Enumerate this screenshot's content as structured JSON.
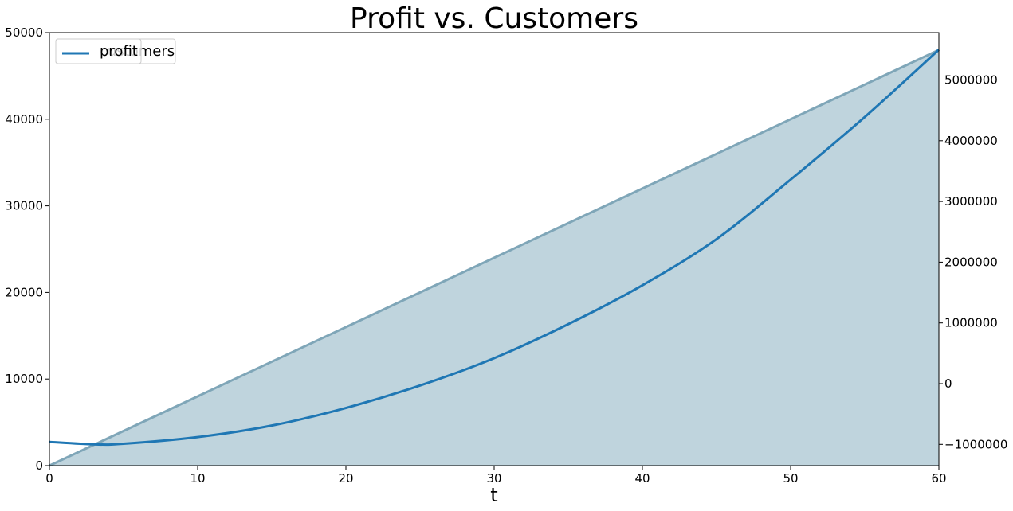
{
  "chart_data": {
    "type": "area",
    "title": "Profit vs. Customers",
    "xlabel": "t",
    "ylabel": "",
    "y2label": "",
    "xlim": [
      0,
      60
    ],
    "ylim": [
      0,
      50000
    ],
    "y2lim": [
      -1350000,
      5780000
    ],
    "xticks": [
      0,
      10,
      20,
      30,
      40,
      50,
      60
    ],
    "yticks": [
      0,
      10000,
      20000,
      30000,
      40000,
      50000
    ],
    "y2ticks": [
      -1000000,
      0,
      1000000,
      2000000,
      3000000,
      4000000,
      5000000
    ],
    "y2tick_labels": [
      "−1000000",
      "0",
      "1000000",
      "2000000",
      "3000000",
      "4000000",
      "5000000"
    ],
    "grid": false,
    "series": [
      {
        "name": "customers",
        "axis": "left",
        "kind": "area",
        "color": "#7fa6b8",
        "fill_color": "#bfd4dd",
        "x": [
          0,
          60
        ],
        "values": [
          0,
          48000
        ]
      },
      {
        "name": "profit",
        "axis": "right",
        "kind": "line",
        "color": "#1f77b4",
        "x": [
          0,
          3,
          5,
          10,
          15,
          20,
          25,
          30,
          35,
          40,
          45,
          50,
          55,
          60
        ],
        "values": [
          -960000,
          -1000000,
          -990000,
          -880000,
          -690000,
          -400000,
          -30000,
          420000,
          980000,
          1620000,
          2380000,
          3360000,
          4390000,
          5500000
        ]
      }
    ],
    "legend": {
      "placement": "top-left",
      "entries": [
        "customers",
        "profit"
      ]
    }
  }
}
